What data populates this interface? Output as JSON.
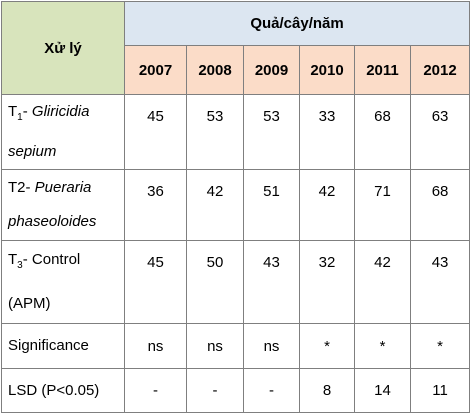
{
  "table": {
    "header": {
      "treatment_label": "Xử lý",
      "group_label": "Quả/cây/năm",
      "years": [
        "2007",
        "2008",
        "2009",
        "2010",
        "2011",
        "2012"
      ]
    },
    "rows": [
      {
        "prefix": "T",
        "sub": "1",
        "dash": "- ",
        "name": "Gliricidia sepium",
        "values": [
          "45",
          "53",
          "53",
          "33",
          "68",
          "63"
        ]
      },
      {
        "prefix": "T2- ",
        "name": "Pueraria phaseoloides",
        "values": [
          "36",
          "42",
          "51",
          "42",
          "71",
          "68"
        ]
      },
      {
        "prefix": "T",
        "sub": "3",
        "dash": "- ",
        "name": "Control (APM)",
        "values": [
          "45",
          "50",
          "43",
          "32",
          "42",
          "43"
        ]
      },
      {
        "name": "Significance",
        "values": [
          "ns",
          "ns",
          "ns",
          "*",
          "*",
          "*"
        ]
      },
      {
        "name": "LSD (P<0.05)",
        "values": [
          "-",
          "-",
          "-",
          "8",
          "14",
          "11"
        ]
      }
    ]
  },
  "colors": {
    "treatment_header_bg": "#d8e4bc",
    "group_header_bg": "#dce6f1",
    "year_header_bg": "#fbdcc8",
    "border": "#7f7f7f"
  }
}
